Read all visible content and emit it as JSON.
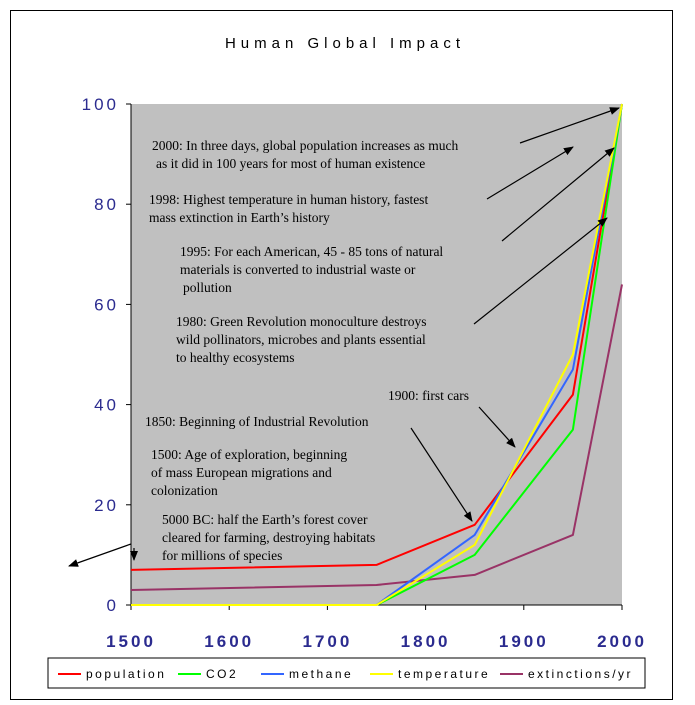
{
  "chart_data": {
    "type": "line",
    "title": "Human Global Impact",
    "xlabel": "",
    "ylabel": "",
    "xlim": [
      1500,
      2000
    ],
    "ylim": [
      0,
      100
    ],
    "x_ticks": [
      "1500",
      "1600",
      "1700",
      "1800",
      "1900",
      "2000"
    ],
    "y_ticks": [
      "0",
      "20",
      "40",
      "60",
      "80",
      "100"
    ],
    "grid": false,
    "legend_position": "bottom",
    "plot_background": "#c0c0c0",
    "series": [
      {
        "name": "population",
        "color": "#ff0000",
        "x": [
          1500,
          1750,
          1850,
          1950,
          2000
        ],
        "y": [
          7,
          8,
          16,
          42,
          100
        ]
      },
      {
        "name": "CO2",
        "color": "#00ff00",
        "x": [
          1500,
          1750,
          1850,
          1950,
          2000
        ],
        "y": [
          0,
          0,
          10,
          35,
          100
        ]
      },
      {
        "name": "methane",
        "color": "#3366ff",
        "x": [
          1500,
          1750,
          1850,
          1950,
          2000
        ],
        "y": [
          0,
          0,
          14,
          47,
          100
        ]
      },
      {
        "name": "temperature",
        "color": "#ffff00",
        "x": [
          1500,
          1750,
          1850,
          1950,
          2000
        ],
        "y": [
          0,
          0,
          12,
          50,
          100
        ]
      },
      {
        "name": "extinctions/yr",
        "color": "#993366",
        "x": [
          1500,
          1750,
          1850,
          1950,
          2000
        ],
        "y": [
          3,
          4,
          6,
          14,
          64
        ]
      }
    ],
    "annotations": [
      {
        "id": "a2000",
        "lines": [
          "2000: In three days, global population increases as much",
          "as it did in 100 years for most of human existence"
        ]
      },
      {
        "id": "a1998",
        "lines": [
          "1998: Highest temperature in human history, fastest",
          "mass extinction in Earth’s history"
        ]
      },
      {
        "id": "a1995",
        "lines": [
          "1995: For each American, 45 - 85 tons of natural",
          "materials is converted to industrial waste or",
          "pollution"
        ]
      },
      {
        "id": "a1980",
        "lines": [
          "1980: Green Revolution monoculture destroys",
          "wild pollinators, microbes and plants essential",
          "to healthy  ecosystems"
        ]
      },
      {
        "id": "a1900",
        "lines": [
          "1900: first cars"
        ]
      },
      {
        "id": "a1850",
        "lines": [
          "1850: Beginning of Industrial Revolution"
        ]
      },
      {
        "id": "a1500",
        "lines": [
          "1500: Age of exploration, beginning",
          "of mass European migrations and",
          "colonization"
        ]
      },
      {
        "id": "a5000",
        "lines": [
          "5000 BC: half the Earth’s forest cover",
          "cleared for farming, destroying habitats",
          "for millions of species"
        ]
      }
    ]
  }
}
